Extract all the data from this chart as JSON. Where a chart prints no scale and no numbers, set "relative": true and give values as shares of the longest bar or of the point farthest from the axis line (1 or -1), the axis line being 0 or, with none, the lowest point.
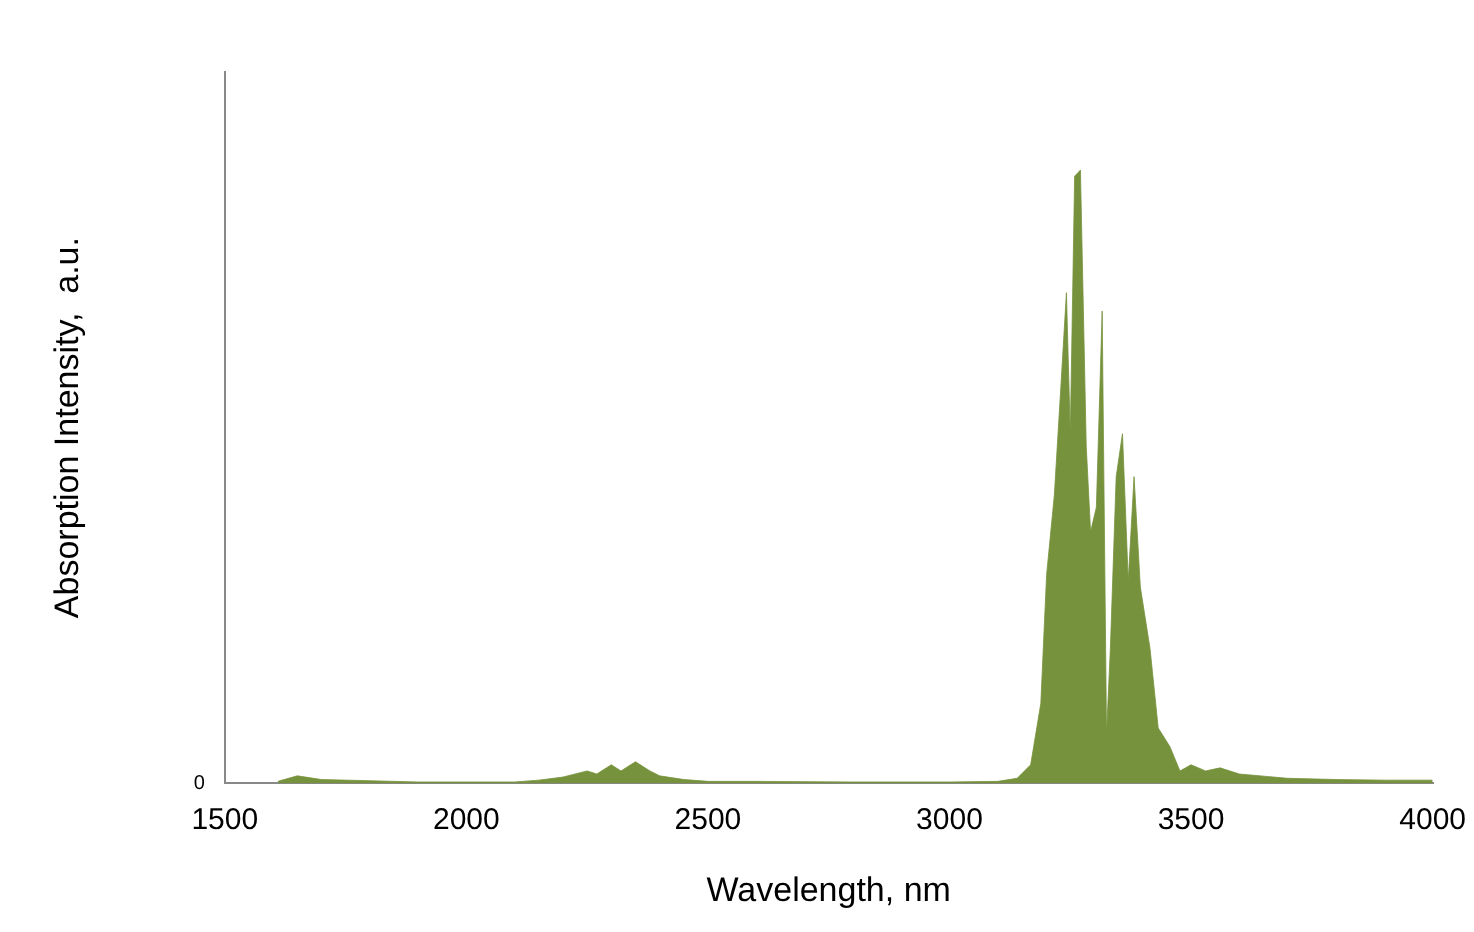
{
  "chart_data": {
    "type": "area",
    "xlabel": "Wavelength, nm",
    "ylabel": "Absorption Intensity,  a.u.",
    "relative": true,
    "annotations": [
      "0"
    ],
    "xlim": [
      1500,
      4000
    ],
    "xticks": [
      1500,
      2000,
      2500,
      3000,
      3500,
      4000
    ],
    "grid": false,
    "legend": false,
    "marker": "none",
    "series": [
      {
        "color": "#76923c",
        "x": [
          1610,
          1650,
          1700,
          1800,
          1900,
          2000,
          2100,
          2150,
          2200,
          2250,
          2270,
          2300,
          2320,
          2350,
          2380,
          2400,
          2450,
          2500,
          2600,
          2800,
          3000,
          3100,
          3140,
          3168,
          3189,
          3201,
          3217,
          3230,
          3242,
          3250,
          3259,
          3271,
          3283,
          3292,
          3304,
          3316,
          3325,
          3333,
          3345,
          3358,
          3370,
          3382,
          3395,
          3415,
          3432,
          3456,
          3477,
          3500,
          3530,
          3560,
          3600,
          3700,
          3800,
          3900,
          4000
        ],
        "values": [
          0.003,
          0.012,
          0.006,
          0.004,
          0.002,
          0.002,
          0.002,
          0.005,
          0.01,
          0.02,
          0.015,
          0.03,
          0.02,
          0.035,
          0.02,
          0.012,
          0.006,
          0.003,
          0.003,
          0.002,
          0.002,
          0.003,
          0.008,
          0.03,
          0.13,
          0.34,
          0.47,
          0.64,
          0.8,
          0.57,
          0.99,
          1.0,
          0.55,
          0.41,
          0.45,
          0.77,
          0.08,
          0.22,
          0.5,
          0.57,
          0.33,
          0.5,
          0.32,
          0.22,
          0.09,
          0.06,
          0.02,
          0.03,
          0.02,
          0.025,
          0.015,
          0.008,
          0.006,
          0.005,
          0.005
        ]
      }
    ]
  }
}
